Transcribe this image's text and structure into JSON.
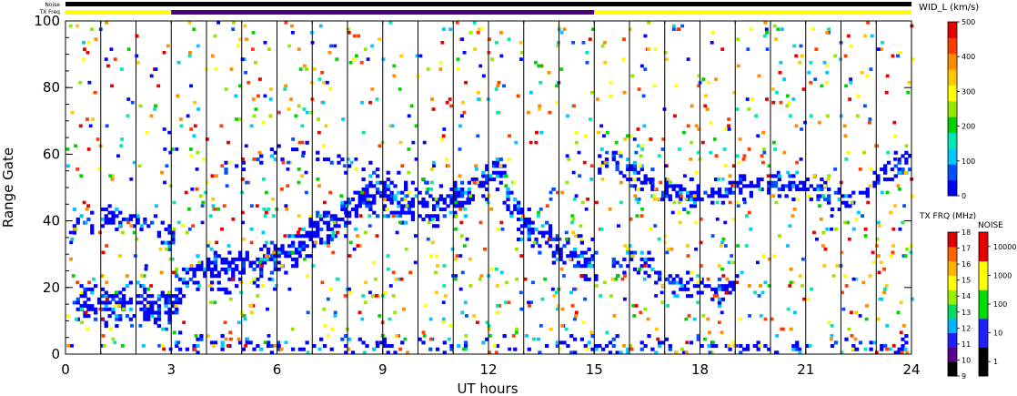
{
  "chart_data": {
    "type": "heatmap",
    "xlabel": "UT hours",
    "ylabel": "Range Gate",
    "xlim": [
      0,
      24
    ],
    "ylim": [
      0,
      100
    ],
    "x_ticks": [
      "0",
      "3",
      "6",
      "9",
      "12",
      "15",
      "18",
      "21",
      "24"
    ],
    "y_ticks": [
      "0",
      "20",
      "40",
      "60",
      "80",
      "100"
    ],
    "hour_gridlines": true,
    "top_bars": {
      "noise_label": "Noise",
      "txfreq_label": "TX Freq",
      "txfreq_segments": [
        {
          "from": 0,
          "to": 3,
          "color": "#ffff00"
        },
        {
          "from": 3,
          "to": 15,
          "color": "#4b0082"
        },
        {
          "from": 15,
          "to": 24,
          "color": "#ffff00"
        }
      ]
    },
    "colorbar_width": {
      "title": "WID_L (km/s)",
      "ticks": [
        "0",
        "100",
        "200",
        "300",
        "400",
        "500"
      ],
      "colors": [
        "#0000ff",
        "#0050ff",
        "#00c8ff",
        "#00e6b4",
        "#00d200",
        "#96e600",
        "#ffff00",
        "#ffc800",
        "#ff8c00",
        "#ff3c00",
        "#e60000"
      ]
    },
    "colorbar_txfreq": {
      "title": "TX FRQ (MHz)",
      "ticks": [
        "9",
        "10",
        "11",
        "12",
        "13",
        "14",
        "15",
        "16",
        "17",
        "18"
      ],
      "colors": [
        "#000000",
        "#5a0090",
        "#1e1eff",
        "#00b4ff",
        "#00dc64",
        "#96f000",
        "#ffff00",
        "#ffb400",
        "#ff6400",
        "#dc0000"
      ]
    },
    "colorbar_noise": {
      "title": "NOISE",
      "ticks": [
        "1",
        "10",
        "100",
        "1000",
        "10000"
      ],
      "colors": [
        "#000000",
        "#1e1eff",
        "#00dc00",
        "#ffff00",
        "#e60000"
      ]
    },
    "bands": [
      {
        "name": "band-a",
        "points": [
          [
            0.2,
            15
          ],
          [
            1,
            14
          ],
          [
            2,
            15
          ],
          [
            2.6,
            13
          ],
          [
            3,
            15
          ],
          [
            3.4,
            24
          ],
          [
            4.5,
            24
          ],
          [
            5.5,
            27
          ],
          [
            6.5,
            32
          ],
          [
            7.5,
            38
          ],
          [
            8.5,
            47
          ],
          [
            9.5,
            45
          ],
          [
            10.5,
            44
          ],
          [
            11.5,
            48
          ],
          [
            12.2,
            55
          ],
          [
            12.8,
            40
          ],
          [
            13.5,
            35
          ],
          [
            14.2,
            30
          ],
          [
            15,
            27
          ]
        ],
        "width": 6,
        "density": 0.55
      },
      {
        "name": "band-b",
        "points": [
          [
            0.2,
            40
          ],
          [
            1.5,
            40
          ],
          [
            2.3,
            40
          ],
          [
            3,
            34
          ]
        ],
        "width": 4,
        "density": 0.35
      },
      {
        "name": "band-c",
        "points": [
          [
            4.5,
            56
          ],
          [
            5.5,
            58
          ],
          [
            6.5,
            62
          ],
          [
            7.5,
            58
          ],
          [
            8.5,
            55
          ],
          [
            9.5,
            52
          ],
          [
            10.5,
            48
          ]
        ],
        "width": 3,
        "density": 0.18
      },
      {
        "name": "band-d",
        "points": [
          [
            15.1,
            58
          ],
          [
            16,
            55
          ],
          [
            17,
            48
          ],
          [
            18,
            47
          ],
          [
            19,
            50
          ],
          [
            20,
            50
          ],
          [
            21,
            50
          ],
          [
            22,
            45
          ],
          [
            23,
            52
          ],
          [
            23.8,
            58
          ],
          [
            24,
            55
          ]
        ],
        "width": 4,
        "density": 0.42
      },
      {
        "name": "band-e",
        "points": [
          [
            15.5,
            28
          ],
          [
            16.5,
            26
          ],
          [
            17.5,
            20
          ],
          [
            18.5,
            18
          ],
          [
            19,
            20
          ]
        ],
        "width": 4,
        "density": 0.4
      },
      {
        "name": "band-f",
        "points": [
          [
            3,
            3
          ],
          [
            6,
            2
          ],
          [
            10,
            2
          ],
          [
            14,
            2
          ],
          [
            19,
            2
          ],
          [
            24,
            2
          ]
        ],
        "width": 3,
        "density": 0.18
      }
    ]
  }
}
